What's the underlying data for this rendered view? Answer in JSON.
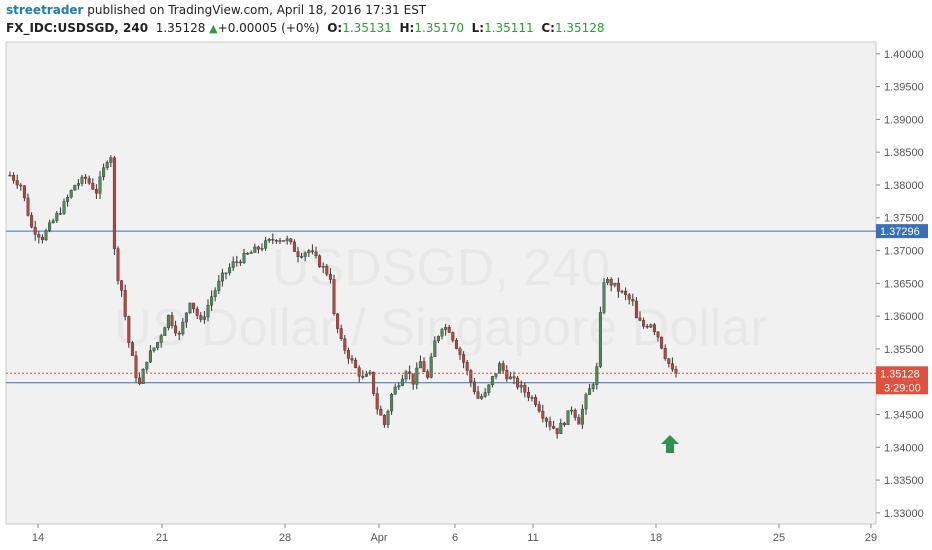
{
  "header": {
    "author": "streetrader",
    "published_text": " published on TradingView.com, April 18, 2016 17:31 EST",
    "symbol": "FX_IDC:USDSGD, 240",
    "last": "1.35128",
    "change": "+0.00005 (+0%)",
    "o_label": "O:",
    "o_value": "1.35131",
    "h_label": "H:",
    "h_value": "1.35170",
    "l_label": "L:",
    "l_value": "1.35111",
    "c_label": "C:",
    "c_value": "1.35128"
  },
  "watermark": {
    "line1": "USDSGD, 240",
    "line2": "US Dollar / Singapore Dollar"
  },
  "chart_data": {
    "type": "candlestick",
    "symbol": "FX_IDC:USDSGD",
    "interval": "240",
    "y_range": [
      1.3283,
      1.4018
    ],
    "y_ticks": [
      "1.40000",
      "1.39500",
      "1.39000",
      "1.38500",
      "1.38000",
      "1.37500",
      "1.37000",
      "1.36500",
      "1.36000",
      "1.35500",
      "1.35000",
      "1.34500",
      "1.34000",
      "1.33500",
      "1.33000"
    ],
    "x_ticks": [
      "14",
      "21",
      "28",
      "Apr",
      "6",
      "11",
      "18",
      "25",
      "29"
    ],
    "horizontal_lines": [
      {
        "price": 1.37296,
        "label": "1.37296",
        "color": "#3a6fb5"
      },
      {
        "price": 1.34983,
        "label": "1.34983",
        "color": "#3a6fb5"
      }
    ],
    "last_price": {
      "price": 1.35128,
      "label": "1.35128",
      "countdown": "3:29:00",
      "color": "#e0503c"
    },
    "annotation": {
      "type": "up-arrow",
      "color": "#2f8f55",
      "price": 1.3405
    },
    "colors": {
      "up": "#4f8a5a",
      "down": "#b8463e"
    },
    "waypoints": [
      [
        0,
        1.3815
      ],
      [
        3,
        1.38
      ],
      [
        6,
        1.3735
      ],
      [
        9,
        1.372
      ],
      [
        12,
        1.3745
      ],
      [
        15,
        1.377
      ],
      [
        18,
        1.38
      ],
      [
        21,
        1.381
      ],
      [
        24,
        1.379
      ],
      [
        27,
        1.384
      ],
      [
        28,
        1.3845
      ],
      [
        29,
        1.37
      ],
      [
        30,
        1.366
      ],
      [
        31,
        1.364
      ],
      [
        33,
        1.356
      ],
      [
        35,
        1.351
      ],
      [
        36,
        1.3495
      ],
      [
        38,
        1.3535
      ],
      [
        41,
        1.356
      ],
      [
        44,
        1.36
      ],
      [
        47,
        1.357
      ],
      [
        50,
        1.3625
      ],
      [
        53,
        1.359
      ],
      [
        56,
        1.363
      ],
      [
        59,
        1.366
      ],
      [
        62,
        1.368
      ],
      [
        65,
        1.369
      ],
      [
        68,
        1.37
      ],
      [
        71,
        1.371
      ],
      [
        74,
        1.372
      ],
      [
        77,
        1.3715
      ],
      [
        80,
        1.3695
      ],
      [
        83,
        1.37
      ],
      [
        86,
        1.368
      ],
      [
        89,
        1.366
      ],
      [
        90,
        1.36
      ],
      [
        92,
        1.356
      ],
      [
        94,
        1.354
      ],
      [
        96,
        1.352
      ],
      [
        98,
        1.3505
      ],
      [
        100,
        1.351
      ],
      [
        102,
        1.346
      ],
      [
        104,
        1.3435
      ],
      [
        106,
        1.348
      ],
      [
        108,
        1.35
      ],
      [
        110,
        1.352
      ],
      [
        112,
        1.35
      ],
      [
        114,
        1.353
      ],
      [
        116,
        1.3505
      ],
      [
        118,
        1.356
      ],
      [
        120,
        1.3585
      ],
      [
        122,
        1.358
      ],
      [
        124,
        1.3555
      ],
      [
        126,
        1.353
      ],
      [
        128,
        1.35
      ],
      [
        130,
        1.3475
      ],
      [
        132,
        1.348
      ],
      [
        134,
        1.3505
      ],
      [
        136,
        1.3525
      ],
      [
        138,
        1.351
      ],
      [
        140,
        1.35
      ],
      [
        142,
        1.349
      ],
      [
        144,
        1.348
      ],
      [
        146,
        1.347
      ],
      [
        148,
        1.345
      ],
      [
        150,
        1.3435
      ],
      [
        152,
        1.3425
      ],
      [
        154,
        1.344
      ],
      [
        156,
        1.346
      ],
      [
        158,
        1.344
      ],
      [
        160,
        1.3475
      ],
      [
        162,
        1.35
      ],
      [
        163,
        1.352
      ],
      [
        164,
        1.36
      ],
      [
        165,
        1.3655
      ],
      [
        167,
        1.365
      ],
      [
        169,
        1.364
      ],
      [
        171,
        1.363
      ],
      [
        173,
        1.362
      ],
      [
        174,
        1.3595
      ],
      [
        176,
        1.3585
      ],
      [
        178,
        1.359
      ],
      [
        180,
        1.357
      ],
      [
        182,
        1.354
      ],
      [
        184,
        1.3515
      ],
      [
        185,
        1.35128
      ]
    ]
  }
}
